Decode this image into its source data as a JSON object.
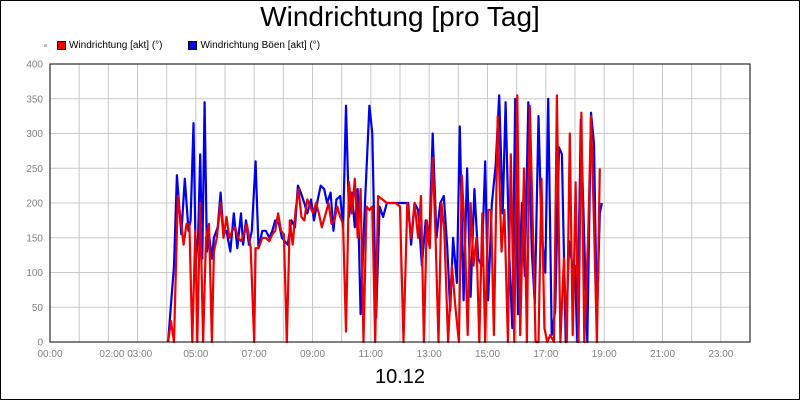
{
  "chart_data": {
    "type": "line",
    "title": "Windrichtung [pro Tag]",
    "xlabel": "10.12",
    "ylabel": "",
    "ylim": [
      0,
      400
    ],
    "yticks": [
      0,
      50,
      100,
      150,
      200,
      250,
      300,
      350,
      400
    ],
    "xlim": [
      0,
      24
    ],
    "xticks": [
      {
        "x": 0,
        "label": "00:00"
      },
      {
        "x": 2.6,
        "label": "02:00 03:00"
      },
      {
        "x": 5,
        "label": "05:00"
      },
      {
        "x": 7,
        "label": "07:00"
      },
      {
        "x": 9,
        "label": "09:00"
      },
      {
        "x": 11,
        "label": "11:00"
      },
      {
        "x": 13,
        "label": "13:00"
      },
      {
        "x": 15,
        "label": "15:00"
      },
      {
        "x": 17,
        "label": "17:00"
      },
      {
        "x": 19,
        "label": "19:00"
      },
      {
        "x": 21,
        "label": "21:00"
      },
      {
        "x": 23,
        "label": "23:00"
      }
    ],
    "grid": true,
    "legend_position": "top-left",
    "series": [
      {
        "name": "Windrichtung Böen [akt] (°)",
        "color": "#0000ee",
        "points": [
          [
            4.05,
            0
          ],
          [
            4.25,
            110
          ],
          [
            4.35,
            240
          ],
          [
            4.5,
            155
          ],
          [
            4.62,
            235
          ],
          [
            4.75,
            160
          ],
          [
            4.82,
            175
          ],
          [
            4.92,
            315
          ],
          [
            5.0,
            115
          ],
          [
            5.08,
            155
          ],
          [
            5.15,
            270
          ],
          [
            5.22,
            120
          ],
          [
            5.3,
            345
          ],
          [
            5.38,
            130
          ],
          [
            5.45,
            155
          ],
          [
            5.55,
            120
          ],
          [
            5.62,
            150
          ],
          [
            5.75,
            165
          ],
          [
            5.85,
            215
          ],
          [
            5.95,
            155
          ],
          [
            6.05,
            160
          ],
          [
            6.18,
            130
          ],
          [
            6.3,
            185
          ],
          [
            6.42,
            135
          ],
          [
            6.55,
            185
          ],
          [
            6.62,
            140
          ],
          [
            6.72,
            175
          ],
          [
            6.82,
            140
          ],
          [
            6.92,
            160
          ],
          [
            7.05,
            260
          ],
          [
            7.15,
            135
          ],
          [
            7.28,
            160
          ],
          [
            7.4,
            160
          ],
          [
            7.52,
            150
          ],
          [
            7.62,
            160
          ],
          [
            7.72,
            175
          ],
          [
            7.85,
            170
          ],
          [
            7.95,
            150
          ],
          [
            8.05,
            145
          ],
          [
            8.15,
            140
          ],
          [
            8.28,
            175
          ],
          [
            8.4,
            165
          ],
          [
            8.5,
            225
          ],
          [
            8.6,
            215
          ],
          [
            8.72,
            200
          ],
          [
            8.82,
            185
          ],
          [
            8.95,
            205
          ],
          [
            9.05,
            175
          ],
          [
            9.18,
            205
          ],
          [
            9.28,
            225
          ],
          [
            9.4,
            220
          ],
          [
            9.5,
            200
          ],
          [
            9.62,
            215
          ],
          [
            9.72,
            160
          ],
          [
            9.82,
            205
          ],
          [
            9.95,
            210
          ],
          [
            10.05,
            165
          ],
          [
            10.15,
            340
          ],
          [
            10.25,
            180
          ],
          [
            10.35,
            215
          ],
          [
            10.45,
            165
          ],
          [
            10.55,
            220
          ],
          [
            10.65,
            40
          ],
          [
            10.8,
            200
          ],
          [
            10.95,
            340
          ],
          [
            11.05,
            300
          ],
          [
            11.18,
            35
          ],
          [
            11.3,
            195
          ],
          [
            11.42,
            180
          ],
          [
            11.55,
            200
          ],
          [
            11.7,
            200
          ],
          [
            11.85,
            200
          ],
          [
            12.0,
            200
          ],
          [
            12.15,
            200
          ],
          [
            12.28,
            200
          ],
          [
            12.38,
            140
          ],
          [
            12.5,
            200
          ],
          [
            12.62,
            190
          ],
          [
            12.75,
            110
          ],
          [
            12.88,
            175
          ],
          [
            13.0,
            140
          ],
          [
            13.12,
            300
          ],
          [
            13.25,
            150
          ],
          [
            13.38,
            200
          ],
          [
            13.5,
            210
          ],
          [
            13.62,
            135
          ],
          [
            13.72,
            45
          ],
          [
            13.82,
            150
          ],
          [
            13.95,
            85
          ],
          [
            14.05,
            310
          ],
          [
            14.18,
            60
          ],
          [
            14.3,
            250
          ],
          [
            14.42,
            65
          ],
          [
            14.55,
            220
          ],
          [
            14.68,
            120
          ],
          [
            14.8,
            110
          ],
          [
            14.92,
            260
          ],
          [
            15.02,
            60
          ],
          [
            15.15,
            200
          ],
          [
            15.28,
            255
          ],
          [
            15.4,
            355
          ],
          [
            15.52,
            185
          ],
          [
            15.62,
            345
          ],
          [
            15.75,
            120
          ],
          [
            15.85,
            20
          ],
          [
            15.95,
            350
          ],
          [
            16.05,
            40
          ],
          [
            16.18,
            200
          ],
          [
            16.28,
            95
          ],
          [
            16.4,
            345
          ],
          [
            16.52,
            130
          ],
          [
            16.62,
            55
          ],
          [
            16.75,
            325
          ],
          [
            16.85,
            160
          ],
          [
            16.98,
            100
          ],
          [
            17.08,
            350
          ],
          [
            17.2,
            10
          ],
          [
            17.32,
            45
          ],
          [
            17.45,
            280
          ],
          [
            17.55,
            270
          ],
          [
            17.68,
            0
          ],
          [
            17.8,
            145
          ],
          [
            17.92,
            105
          ],
          [
            18.0,
            110
          ],
          [
            18.08,
            0
          ],
          [
            18.2,
            320
          ],
          [
            18.32,
            145
          ],
          [
            18.42,
            0
          ],
          [
            18.55,
            330
          ],
          [
            18.65,
            285
          ],
          [
            18.75,
            30
          ],
          [
            18.85,
            185
          ],
          [
            18.92,
            200
          ]
        ]
      },
      {
        "name": "Windrichtung [akt] (°)",
        "color": "#ee0000",
        "points": [
          [
            4.05,
            0
          ],
          [
            4.15,
            30
          ],
          [
            4.25,
            0
          ],
          [
            4.38,
            210
          ],
          [
            4.5,
            170
          ],
          [
            4.58,
            140
          ],
          [
            4.68,
            170
          ],
          [
            4.78,
            170
          ],
          [
            4.88,
            0
          ],
          [
            4.98,
            160
          ],
          [
            5.05,
            0
          ],
          [
            5.15,
            200
          ],
          [
            5.25,
            0
          ],
          [
            5.35,
            150
          ],
          [
            5.45,
            170
          ],
          [
            5.55,
            0
          ],
          [
            5.62,
            130
          ],
          [
            5.72,
            150
          ],
          [
            5.85,
            200
          ],
          [
            5.95,
            150
          ],
          [
            6.05,
            180
          ],
          [
            6.15,
            150
          ],
          [
            6.25,
            160
          ],
          [
            6.35,
            165
          ],
          [
            6.45,
            150
          ],
          [
            6.55,
            145
          ],
          [
            6.65,
            155
          ],
          [
            6.75,
            170
          ],
          [
            6.88,
            135
          ],
          [
            7.0,
            0
          ],
          [
            7.05,
            135
          ],
          [
            7.15,
            135
          ],
          [
            7.28,
            150
          ],
          [
            7.4,
            150
          ],
          [
            7.52,
            145
          ],
          [
            7.62,
            155
          ],
          [
            7.72,
            160
          ],
          [
            7.82,
            185
          ],
          [
            7.92,
            160
          ],
          [
            8.02,
            155
          ],
          [
            8.12,
            0
          ],
          [
            8.22,
            175
          ],
          [
            8.32,
            140
          ],
          [
            8.42,
            190
          ],
          [
            8.52,
            220
          ],
          [
            8.62,
            180
          ],
          [
            8.72,
            175
          ],
          [
            8.82,
            205
          ],
          [
            8.92,
            195
          ],
          [
            9.02,
            185
          ],
          [
            9.12,
            200
          ],
          [
            9.22,
            185
          ],
          [
            9.32,
            165
          ],
          [
            9.42,
            180
          ],
          [
            9.55,
            200
          ],
          [
            9.65,
            170
          ],
          [
            9.75,
            175
          ],
          [
            9.85,
            195
          ],
          [
            9.95,
            180
          ],
          [
            10.05,
            170
          ],
          [
            10.15,
            15
          ],
          [
            10.25,
            230
          ],
          [
            10.35,
            185
          ],
          [
            10.45,
            235
          ],
          [
            10.55,
            150
          ],
          [
            10.65,
            220
          ],
          [
            10.75,
            0
          ],
          [
            10.85,
            195
          ],
          [
            10.95,
            190
          ],
          [
            11.05,
            195
          ],
          [
            11.15,
            0
          ],
          [
            11.25,
            210
          ],
          [
            11.4,
            205
          ],
          [
            11.55,
            200
          ],
          [
            11.7,
            200
          ],
          [
            11.85,
            200
          ],
          [
            12.0,
            195
          ],
          [
            12.12,
            0
          ],
          [
            12.25,
            200
          ],
          [
            12.38,
            150
          ],
          [
            12.5,
            200
          ],
          [
            12.62,
            150
          ],
          [
            12.72,
            210
          ],
          [
            12.82,
            0
          ],
          [
            12.92,
            175
          ],
          [
            13.02,
            135
          ],
          [
            13.12,
            265
          ],
          [
            13.22,
            150
          ],
          [
            13.32,
            0
          ],
          [
            13.42,
            200
          ],
          [
            13.52,
            160
          ],
          [
            13.65,
            0
          ],
          [
            13.78,
            110
          ],
          [
            13.9,
            50
          ],
          [
            14.02,
            0
          ],
          [
            14.12,
            240
          ],
          [
            14.22,
            155
          ],
          [
            14.32,
            10
          ],
          [
            14.42,
            200
          ],
          [
            14.52,
            110
          ],
          [
            14.62,
            150
          ],
          [
            14.72,
            0
          ],
          [
            14.82,
            185
          ],
          [
            14.92,
            0
          ],
          [
            15.02,
            190
          ],
          [
            15.12,
            190
          ],
          [
            15.22,
            10
          ],
          [
            15.35,
            325
          ],
          [
            15.48,
            130
          ],
          [
            15.58,
            190
          ],
          [
            15.7,
            0
          ],
          [
            15.8,
            270
          ],
          [
            15.92,
            0
          ],
          [
            16.02,
            355
          ],
          [
            16.12,
            10
          ],
          [
            16.25,
            250
          ],
          [
            16.35,
            0
          ],
          [
            16.45,
            340
          ],
          [
            16.55,
            175
          ],
          [
            16.65,
            0
          ],
          [
            16.75,
            0
          ],
          [
            16.85,
            235
          ],
          [
            16.95,
            20
          ],
          [
            17.05,
            0
          ],
          [
            17.15,
            10
          ],
          [
            17.28,
            0
          ],
          [
            17.38,
            355
          ],
          [
            17.5,
            0
          ],
          [
            17.62,
            120
          ],
          [
            17.72,
            0
          ],
          [
            17.82,
            300
          ],
          [
            17.92,
            10
          ],
          [
            18.02,
            230
          ],
          [
            18.12,
            0
          ],
          [
            18.22,
            330
          ],
          [
            18.32,
            0
          ],
          [
            18.45,
            150
          ],
          [
            18.55,
            325
          ],
          [
            18.65,
            170
          ],
          [
            18.75,
            0
          ],
          [
            18.85,
            250
          ]
        ]
      }
    ]
  }
}
